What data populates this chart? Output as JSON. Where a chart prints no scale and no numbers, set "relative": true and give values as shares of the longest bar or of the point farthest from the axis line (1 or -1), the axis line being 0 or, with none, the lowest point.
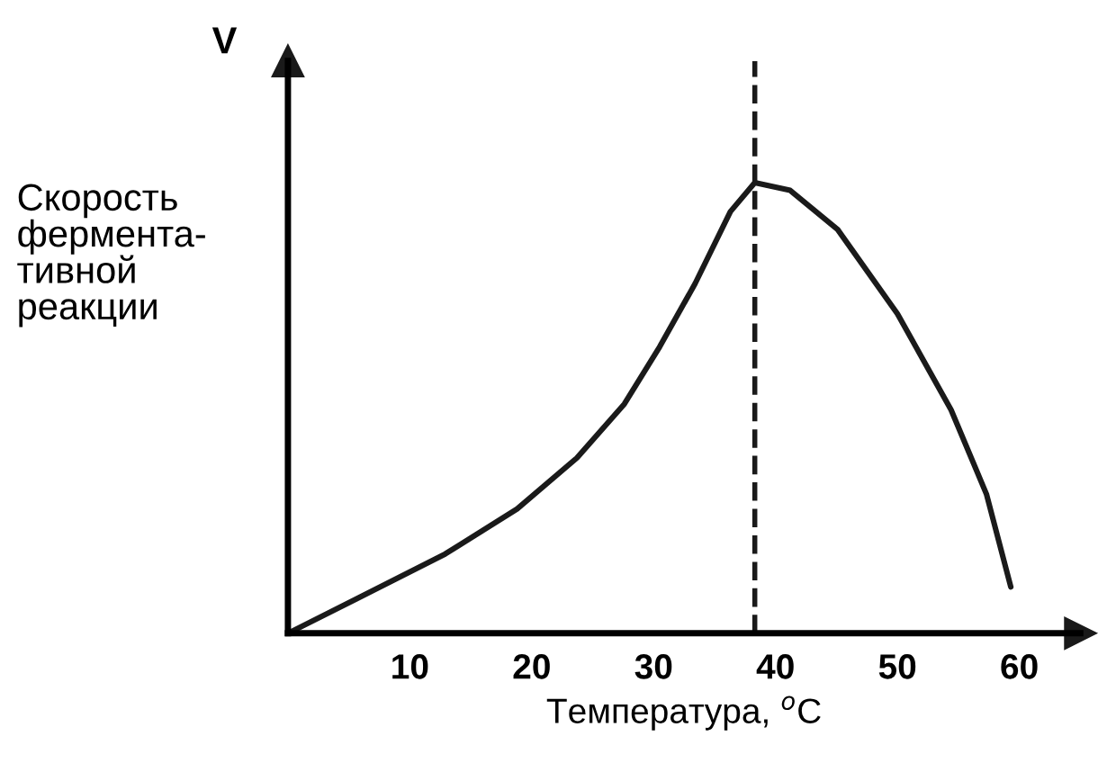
{
  "chart_data": {
    "type": "line",
    "relative": true,
    "ylabel": "V",
    "xlabel": "Температура, $^{o}$C",
    "annotations": [
      "Скорость\nфермента-\nтивной\nреакции"
    ],
    "x": [
      0,
      5.6,
      12.9,
      18.8,
      23.7,
      27.6,
      30.5,
      33.4,
      36.3,
      38.3,
      41.2,
      45.1,
      50.0,
      54.4,
      57.3,
      59.3
    ],
    "series": [
      {
        "color": "#1a1a1a",
        "values": [
          0,
          0.076,
          0.176,
          0.276,
          0.389,
          0.509,
          0.636,
          0.776,
          0.936,
          1.0,
          0.983,
          0.896,
          0.709,
          0.496,
          0.309,
          0.103
        ]
      }
    ],
    "xlim": [
      0,
      65
    ],
    "xticks": [
      10,
      20,
      30,
      40,
      50,
      60
    ],
    "ref_lines": [
      {
        "axis": "x",
        "value": 38.3,
        "line_style": "dashed",
        "color": "#1a1a1a"
      }
    ],
    "grid": false,
    "marker": "none",
    "line_style": "solid"
  }
}
